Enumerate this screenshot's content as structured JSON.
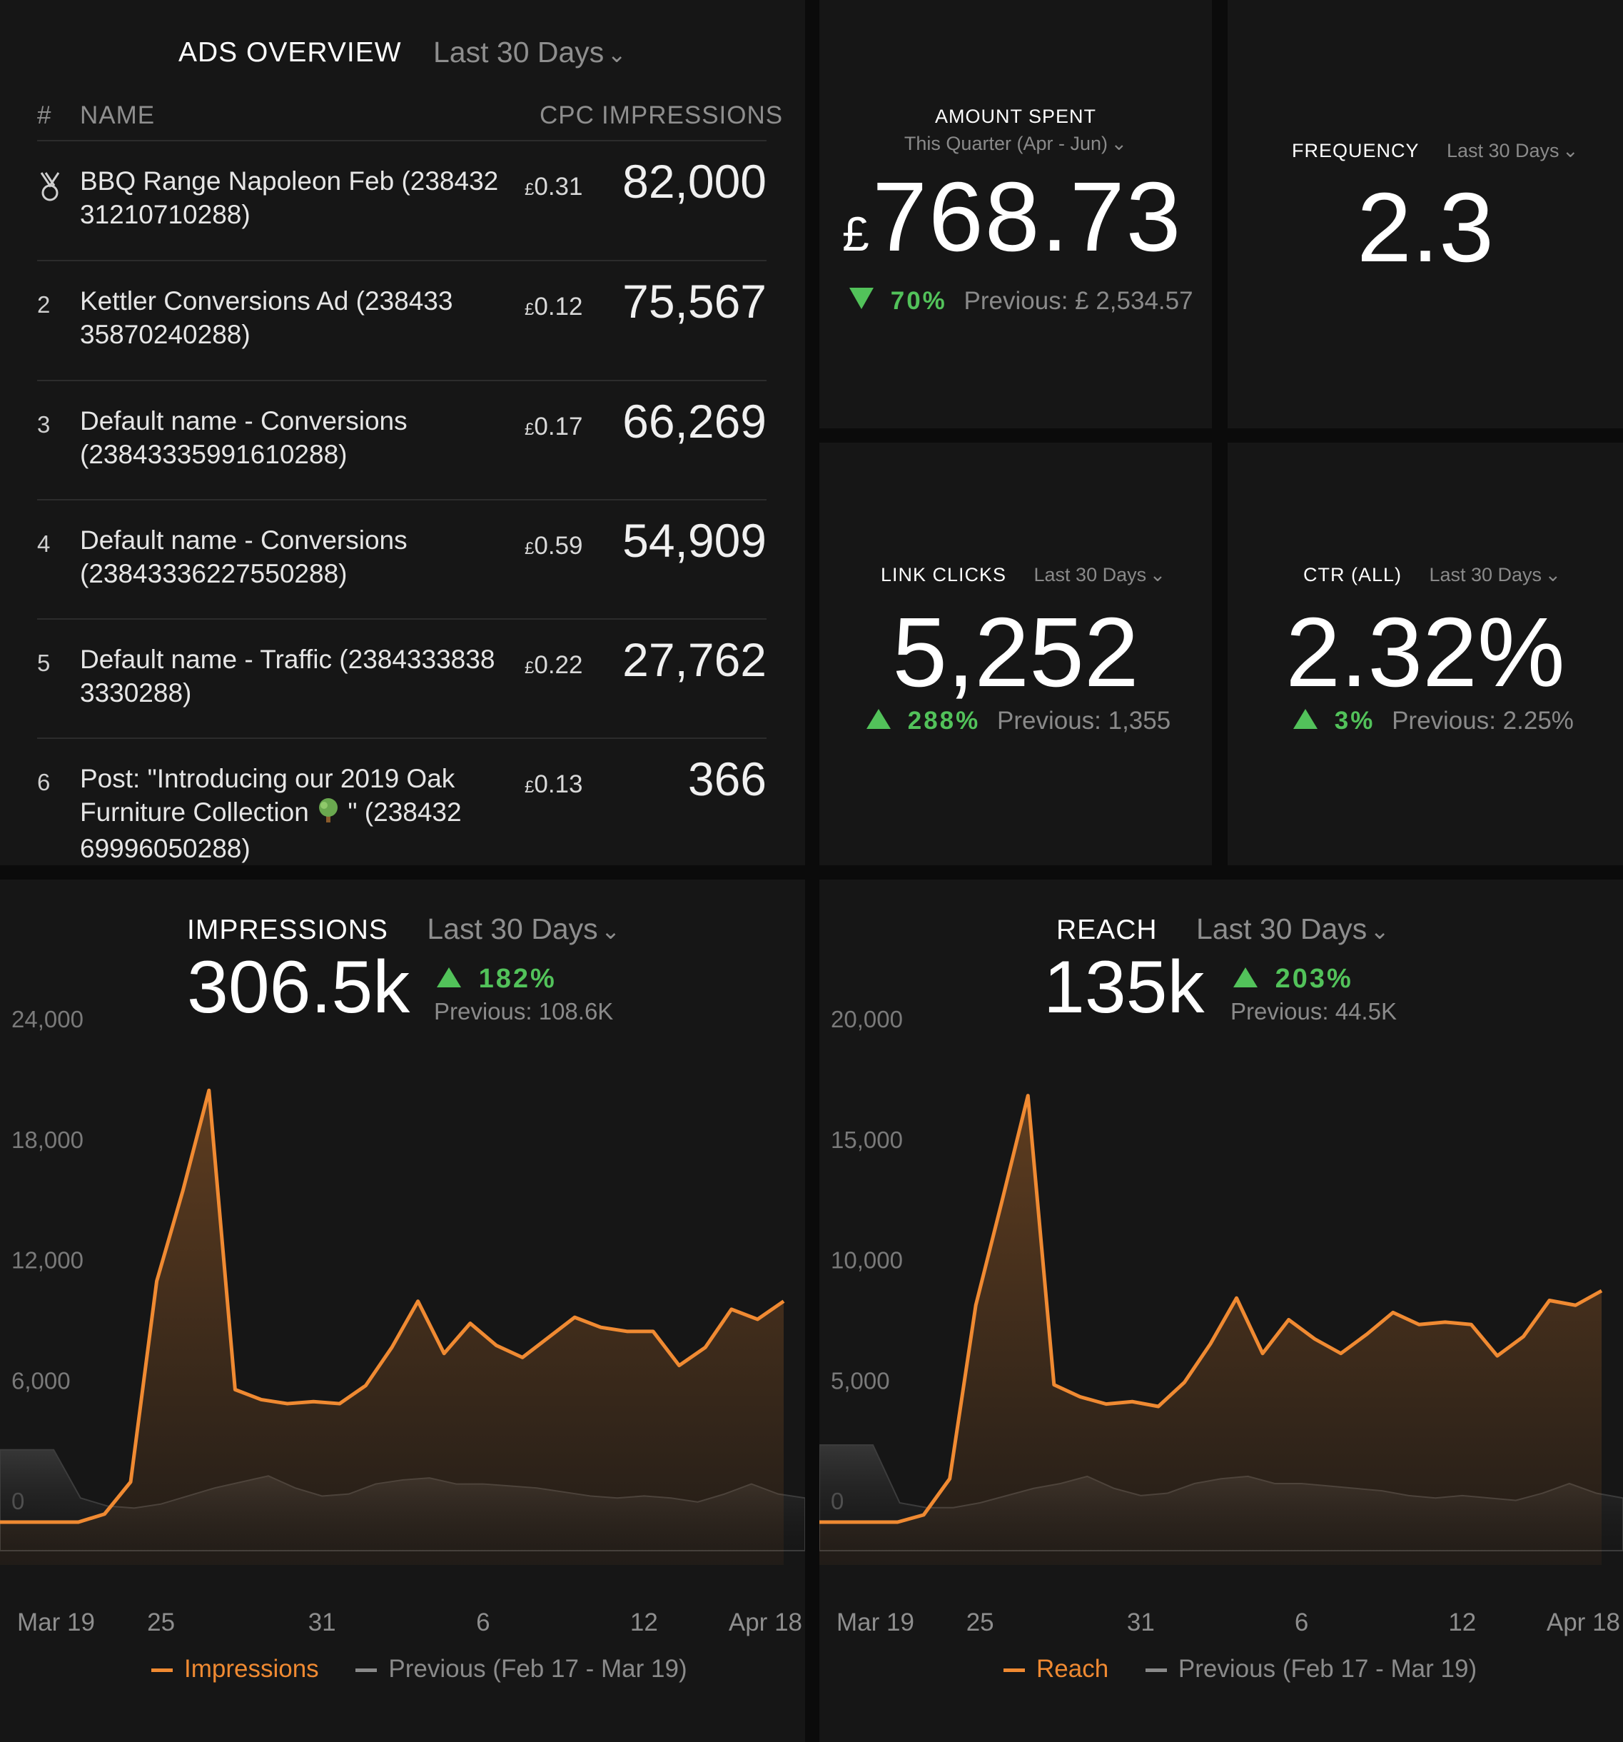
{
  "ads_overview": {
    "title": "ADS OVERVIEW",
    "period": "Last 30 Days",
    "columns": {
      "num": "#",
      "name": "NAME",
      "cpc": "CPC",
      "impressions": "IMPRESSIONS"
    },
    "rows": [
      {
        "num": "",
        "rank_icon": "medal-icon",
        "name": "BBQ Range Napoleon Feb (23843231210710288)",
        "name_lines": [
          "BBQ Range Napoleon Feb (238432",
          "31210710288)"
        ],
        "cpc_currency": "£",
        "cpc": "0.31",
        "impressions": "82,000"
      },
      {
        "num": "2",
        "name_lines": [
          "Kettler Conversions Ad (238433",
          "35870240288)"
        ],
        "cpc_currency": "£",
        "cpc": "0.12",
        "impressions": "75,567"
      },
      {
        "num": "3",
        "name_lines": [
          "Default name - Conversions",
          "(23843335991610288)"
        ],
        "cpc_currency": "£",
        "cpc": "0.17",
        "impressions": "66,269"
      },
      {
        "num": "4",
        "name_lines": [
          "Default name - Conversions",
          "(23843336227550288)"
        ],
        "cpc_currency": "£",
        "cpc": "0.59",
        "impressions": "54,909"
      },
      {
        "num": "5",
        "name_lines": [
          "Default name - Traffic (2384333838",
          "3330288)"
        ],
        "cpc_currency": "£",
        "cpc": "0.22",
        "impressions": "27,762"
      },
      {
        "num": "6",
        "name_lines": [
          "Post: \"Introducing our 2019 Oak",
          "Furniture Collection",
          "\" (238432",
          "69996050288)"
        ],
        "tree_icon": "tree-icon",
        "cpc_currency": "£",
        "cpc": "0.13",
        "impressions": "366"
      }
    ]
  },
  "amount_spent": {
    "title": "AMOUNT SPENT",
    "period": "This Quarter (Apr - Jun)",
    "currency": "£",
    "value": "768.73",
    "change": "70%",
    "direction": "down",
    "previous": "Previous: £ 2,534.57"
  },
  "frequency": {
    "title": "FREQUENCY",
    "period": "Last 30 Days",
    "value": "2.3"
  },
  "link_clicks": {
    "title": "LINK CLICKS",
    "period": "Last 30 Days",
    "value": "5,252",
    "change": "288%",
    "direction": "up",
    "previous": "Previous: 1,355"
  },
  "ctr": {
    "title": "CTR (ALL)",
    "period": "Last 30 Days",
    "value": "2.32%",
    "change": "3%",
    "direction": "up",
    "previous": "Previous: 2.25%"
  },
  "impressions_widget": {
    "title": "IMPRESSIONS",
    "period": "Last 30 Days",
    "value": "306.5k",
    "change": "182%",
    "previous": "Previous: 108.6K",
    "legend_current": "Impressions",
    "legend_previous": "Previous (Feb 17 - Mar 19)"
  },
  "reach_widget": {
    "title": "REACH",
    "period": "Last 30 Days",
    "value": "135k",
    "change": "203%",
    "previous": "Previous: 44.5K",
    "legend_current": "Reach",
    "legend_previous": "Previous (Feb 17 - Mar 19)"
  },
  "colors": {
    "accent": "#f08a32",
    "positive": "#52c25a",
    "previous_line": "#4a4a4a",
    "panel_bg": "#161616"
  },
  "chart_data": [
    {
      "type": "area",
      "title": "IMPRESSIONS",
      "x": [
        "Mar 19",
        "Mar 20",
        "Mar 21",
        "Mar 22",
        "Mar 23",
        "Mar 24",
        "Mar 25",
        "Mar 26",
        "Mar 27",
        "Mar 28",
        "Mar 29",
        "Mar 30",
        "Mar 31",
        "Apr 1",
        "Apr 2",
        "Apr 3",
        "Apr 4",
        "Apr 5",
        "Apr 6",
        "Apr 7",
        "Apr 8",
        "Apr 9",
        "Apr 10",
        "Apr 11",
        "Apr 12",
        "Apr 13",
        "Apr 14",
        "Apr 15",
        "Apr 16",
        "Apr 17",
        "Apr 18"
      ],
      "xtick_labels": [
        "Mar 19",
        "25",
        "31",
        "6",
        "12",
        "Apr 18"
      ],
      "yticks": [
        0,
        6000,
        12000,
        18000,
        24000
      ],
      "ytick_labels": [
        "0",
        "6,000",
        "12,000",
        "18,000",
        "24,000"
      ],
      "ylim": [
        0,
        24000
      ],
      "series": [
        {
          "name": "Impressions",
          "color": "#f08a32",
          "values": [
            0,
            0,
            0,
            0,
            400,
            2000,
            12000,
            16500,
            21500,
            6600,
            6100,
            5900,
            6000,
            5900,
            6800,
            8700,
            11000,
            8400,
            9900,
            8800,
            8200,
            9200,
            10200,
            9700,
            9500,
            9500,
            7800,
            8700,
            10600,
            10100,
            11000
          ]
        },
        {
          "name": "Previous (Feb 17 - Mar 19)",
          "color": "#4a4a4a",
          "values": [
            3600,
            3600,
            3600,
            1200,
            800,
            700,
            900,
            1300,
            1700,
            2000,
            2300,
            1700,
            1300,
            1400,
            1900,
            2100,
            2200,
            1900,
            1900,
            1800,
            1700,
            1500,
            1300,
            1200,
            1300,
            1200,
            1000,
            1400,
            1900,
            1400,
            1200
          ]
        }
      ]
    },
    {
      "type": "area",
      "title": "REACH",
      "x": [
        "Mar 19",
        "Mar 20",
        "Mar 21",
        "Mar 22",
        "Mar 23",
        "Mar 24",
        "Mar 25",
        "Mar 26",
        "Mar 27",
        "Mar 28",
        "Mar 29",
        "Mar 30",
        "Mar 31",
        "Apr 1",
        "Apr 2",
        "Apr 3",
        "Apr 4",
        "Apr 5",
        "Apr 6",
        "Apr 7",
        "Apr 8",
        "Apr 9",
        "Apr 10",
        "Apr 11",
        "Apr 12",
        "Apr 13",
        "Apr 14",
        "Apr 15",
        "Apr 16",
        "Apr 17",
        "Apr 18"
      ],
      "xtick_labels": [
        "Mar 19",
        "25",
        "31",
        "6",
        "12",
        "Apr 18"
      ],
      "yticks": [
        0,
        5000,
        10000,
        15000,
        20000
      ],
      "ytick_labels": [
        "0",
        "5,000",
        "10,000",
        "15,000",
        "20,000"
      ],
      "ylim": [
        0,
        20000
      ],
      "series": [
        {
          "name": "Reach",
          "color": "#f08a32",
          "values": [
            0,
            0,
            0,
            0,
            300,
            1800,
            9000,
            13300,
            17700,
            5700,
            5200,
            4900,
            5000,
            4800,
            5800,
            7400,
            9300,
            7000,
            8400,
            7600,
            7000,
            7800,
            8700,
            8200,
            8300,
            8200,
            6900,
            7700,
            9200,
            9000,
            9600
          ]
        },
        {
          "name": "Previous (Feb 17 - Mar 19)",
          "color": "#4a4a4a",
          "values": [
            3200,
            3200,
            3200,
            800,
            600,
            600,
            800,
            1100,
            1400,
            1600,
            1900,
            1400,
            1100,
            1200,
            1600,
            1800,
            1900,
            1600,
            1600,
            1500,
            1400,
            1300,
            1100,
            1000,
            1100,
            1000,
            900,
            1200,
            1600,
            1200,
            1000
          ]
        }
      ]
    }
  ]
}
